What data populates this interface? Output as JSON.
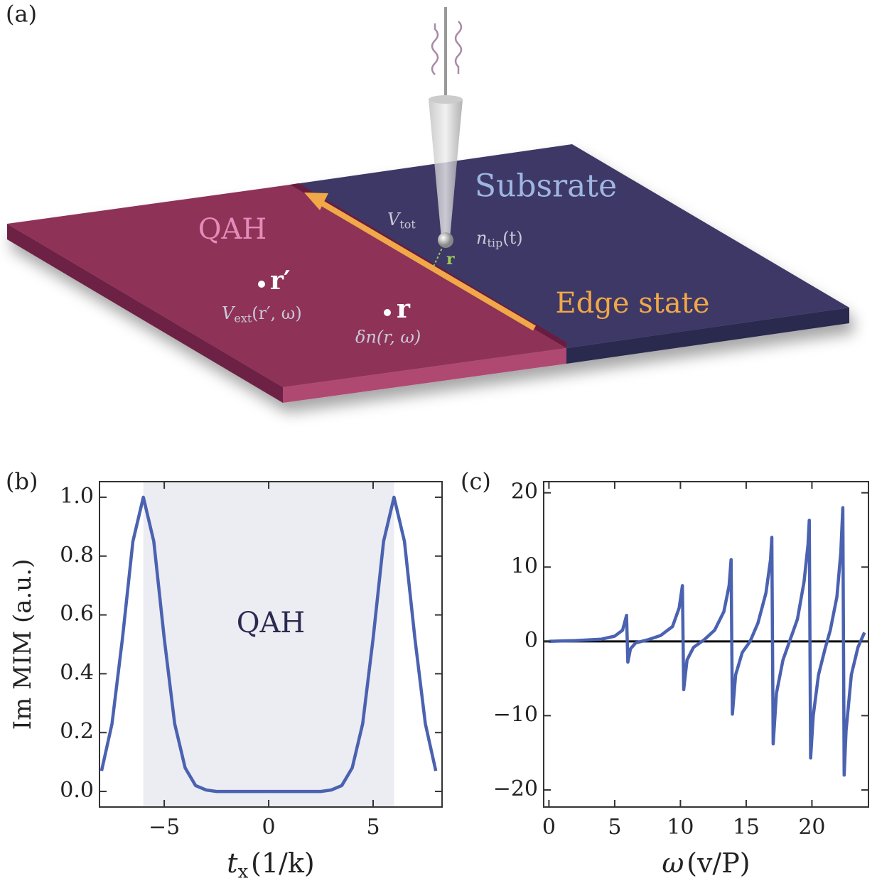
{
  "panel_a": {
    "label": "(a)",
    "substrate": "Subsrate",
    "qah": "QAH",
    "edge_state": "Edge state",
    "v_tot": {
      "symbol": "V",
      "sub": "tot"
    },
    "n_tip": {
      "symbol": "n",
      "sub": "tip",
      "rest": "(t)"
    },
    "tip_r": "r",
    "r_prime": "r′",
    "v_ext": {
      "symbol": "V",
      "sub": "ext",
      "rest": "(r′, ω)"
    },
    "r": "r",
    "delta_n": "δn(r, ω)"
  },
  "chart_data": [
    {
      "type": "line",
      "panel_label": "(b)",
      "ylabel": "Im MIM (a.u.)",
      "xlabel": {
        "symbol": "t",
        "sub": "x",
        "rest": "(1/k)"
      },
      "annotation": "QAH",
      "shaded_range": [
        -6,
        6
      ],
      "color": "#4a62b0",
      "x": [
        -8,
        -7.5,
        -7,
        -6.5,
        -6,
        -5.5,
        -5,
        -4.5,
        -4,
        -3.5,
        -3,
        -2.5,
        -2,
        -1.5,
        -1,
        -0.5,
        0,
        0.5,
        1,
        1.5,
        2,
        2.5,
        3,
        3.5,
        4,
        4.5,
        5,
        5.5,
        6,
        6.5,
        7,
        7.5,
        8
      ],
      "values": [
        0.07,
        0.23,
        0.52,
        0.85,
        1.0,
        0.85,
        0.52,
        0.23,
        0.08,
        0.02,
        0.005,
        0,
        0,
        0,
        0,
        0,
        0,
        0,
        0,
        0,
        0,
        0,
        0.005,
        0.02,
        0.08,
        0.23,
        0.52,
        0.85,
        1.0,
        0.85,
        0.52,
        0.23,
        0.07
      ],
      "xlim": [
        -8.1,
        8.3
      ],
      "ylim": [
        -0.053,
        1.053
      ],
      "xticks": [
        {
          "value": -5,
          "label": "−5"
        },
        0,
        5
      ],
      "yticks": [
        {
          "value": 0,
          "label": "0.0"
        },
        0.2,
        0.4,
        0.6,
        0.8,
        {
          "value": 1,
          "label": "1.0"
        }
      ]
    },
    {
      "type": "line",
      "panel_label": "(c)",
      "xlabel": {
        "symbol": "ω",
        "sub": "",
        "rest": "(v/P)"
      },
      "zero_line": true,
      "color": "#4a62b0",
      "x": [
        0,
        2,
        4,
        5,
        5.6,
        5.9,
        6.0,
        6.2,
        6.6,
        7.5,
        8.5,
        9.4,
        9.9,
        10.15,
        10.25,
        10.5,
        11,
        11.8,
        12.6,
        13.3,
        13.7,
        13.85,
        13.95,
        14.2,
        14.7,
        15.3,
        15.9,
        16.5,
        16.85,
        16.95,
        17.05,
        17.3,
        17.8,
        18.3,
        18.9,
        19.4,
        19.7,
        19.8,
        19.9,
        20.1,
        20.5,
        21,
        21.4,
        21.9,
        22.2,
        22.35,
        22.45,
        22.6,
        23,
        23.5,
        24
      ],
      "values": [
        0,
        0.1,
        0.3,
        0.7,
        1.5,
        3.5,
        -2.8,
        -1.0,
        -0.2,
        0.2,
        0.8,
        2.0,
        4.5,
        7.5,
        -6.5,
        -2.5,
        -0.8,
        0.2,
        1.5,
        4.0,
        7.5,
        11,
        -9.8,
        -4.5,
        -1.5,
        0,
        2.5,
        6.5,
        11,
        14,
        -13.8,
        -7,
        -2.5,
        0,
        3,
        8,
        13,
        16.3,
        -15.7,
        -10,
        -4.5,
        -1,
        1.5,
        6,
        12,
        18,
        -18,
        -12,
        -4.5,
        -0.8,
        1.2
      ],
      "xlim": [
        -0.4,
        24.3
      ],
      "ylim": [
        -22.3,
        21.5
      ],
      "xticks": [
        0,
        5,
        10,
        15,
        20
      ],
      "yticks": [
        {
          "value": -20,
          "label": "−20"
        },
        {
          "value": -10,
          "label": "−10"
        },
        0,
        10,
        20
      ]
    }
  ]
}
